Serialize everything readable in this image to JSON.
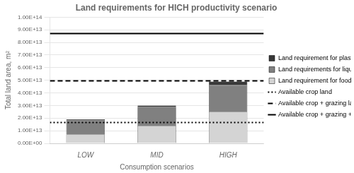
{
  "chart_data": {
    "type": "bar",
    "stacked": true,
    "title": "Land requirements for HICH productivity scenario",
    "xlabel": "Consumption scenarios",
    "ylabel": "Total land area, m²",
    "categories": [
      "LOW",
      "MID",
      "HIGH"
    ],
    "series": [
      {
        "name": "Land requirement for food",
        "color": "#d4d4d4",
        "values": [
          7000000000000.0,
          14000000000000.0,
          25000000000000.0
        ]
      },
      {
        "name": "Land requirements for liquid fuels",
        "color": "#808080",
        "values": [
          11000000000000.0,
          15000000000000.0,
          21000000000000.0
        ]
      },
      {
        "name": "Land requirement for plastics",
        "color": "#383838",
        "values": [
          1000000000000.0,
          1000000000000.0,
          3000000000000.0
        ]
      }
    ],
    "reference_lines": [
      {
        "name": "Available crop land",
        "value": 16500000000000.0,
        "color": "#000000",
        "line_style": "dotted"
      },
      {
        "name": "Available crop + grazing land",
        "value": 49500000000000.0,
        "color": "#000000",
        "line_style": "dashed"
      },
      {
        "name": "Available crop + grazing + forest land",
        "value": 87000000000000.0,
        "color": "#000000",
        "line_style": "solid"
      }
    ],
    "ylim": [
      0,
      100000000000000.0
    ],
    "yticks": [
      {
        "value": 0,
        "label": "0.00E+00"
      },
      {
        "value": 10000000000000.0,
        "label": "1.00E+13"
      },
      {
        "value": 20000000000000.0,
        "label": "2.00E+13"
      },
      {
        "value": 30000000000000.0,
        "label": "3.00E+13"
      },
      {
        "value": 40000000000000.0,
        "label": "4.00E+13"
      },
      {
        "value": 50000000000000.0,
        "label": "5.00E+13"
      },
      {
        "value": 60000000000000.0,
        "label": "6.00E+13"
      },
      {
        "value": 70000000000000.0,
        "label": "7.00E+13"
      },
      {
        "value": 80000000000000.0,
        "label": "8.00E+13"
      },
      {
        "value": 90000000000000.0,
        "label": "9.00E+13"
      },
      {
        "value": 100000000000000.0,
        "label": "1.00E+14"
      }
    ],
    "grid": true,
    "legend": "right"
  }
}
